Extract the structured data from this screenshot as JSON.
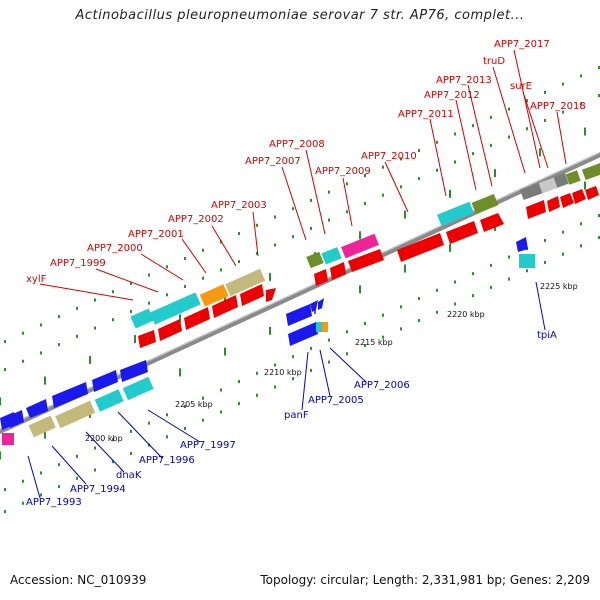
{
  "title": "Actinobacillus pleuropneumoniae serovar 7 str. AP76, complet...",
  "footer": {
    "accession": "Accession: NC_010939",
    "summary": "Topology: circular; Length: 2,331,981 bp; Genes: 2,209"
  },
  "colors": {
    "forward_label": "#d40000",
    "reverse_label": "#0000cc",
    "backbone": "#8a8a8a",
    "tick": "#2e8b2e",
    "red": "#ee0000",
    "cyan": "#22cccc",
    "blue": "#1a1aee",
    "khaki": "#c2b97a",
    "orange": "#f59a10",
    "olive": "#6f8e28",
    "magenta": "#ee2299",
    "gray": "#7a7a7a",
    "lightgray": "#c8c8c8"
  },
  "scale_labels": [
    "2200 kbp",
    "2205 kbp",
    "2210 kbp",
    "2215 kbp",
    "2220 kbp",
    "2225 kbp"
  ],
  "forward_genes": [
    "xylF",
    "APP7_1999",
    "APP7_2000",
    "APP7_2001",
    "APP7_2002",
    "APP7_2003",
    "APP7_2007",
    "APP7_2008",
    "APP7_2009",
    "APP7_2010",
    "APP7_2011",
    "APP7_2012",
    "APP7_2013",
    "truD",
    "surE",
    "APP7_2017",
    "APP7_2018"
  ],
  "reverse_genes": [
    "APP7_1993",
    "APP7_1994",
    "dnaK",
    "APP7_1996",
    "APP7_1997",
    "panF",
    "APP7_2005",
    "APP7_2006",
    "tpiA"
  ]
}
